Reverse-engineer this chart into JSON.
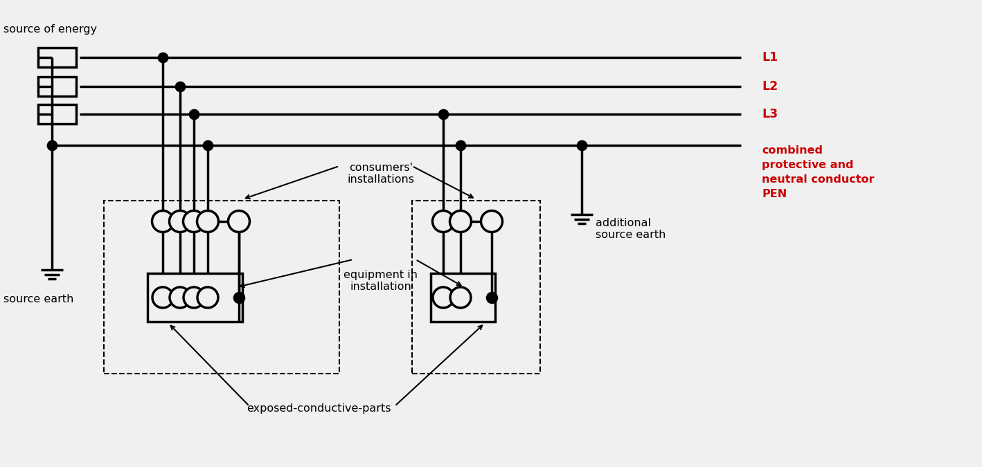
{
  "bg_color": "#f0f0f0",
  "line_color": "#000000",
  "red_color": "#cc0000",
  "lw": 2.5,
  "lw_thin": 1.5,
  "labels": {
    "source_of_energy": "source of energy",
    "source_earth": "source earth",
    "L1": "L1",
    "L2": "L2",
    "L3": "L3",
    "combined": "combined\nprotective and\nneutral conductor\nPEN",
    "additional_source_earth": "additional\nsource earth",
    "consumers_installations": "consumers'\ninstallations",
    "equipment_in_installation": "equipment in\ninstallation",
    "exposed_conductive_parts": "exposed-conductive-parts"
  },
  "xlim": [
    0,
    141.8
  ],
  "ylim": [
    0,
    67.5
  ]
}
